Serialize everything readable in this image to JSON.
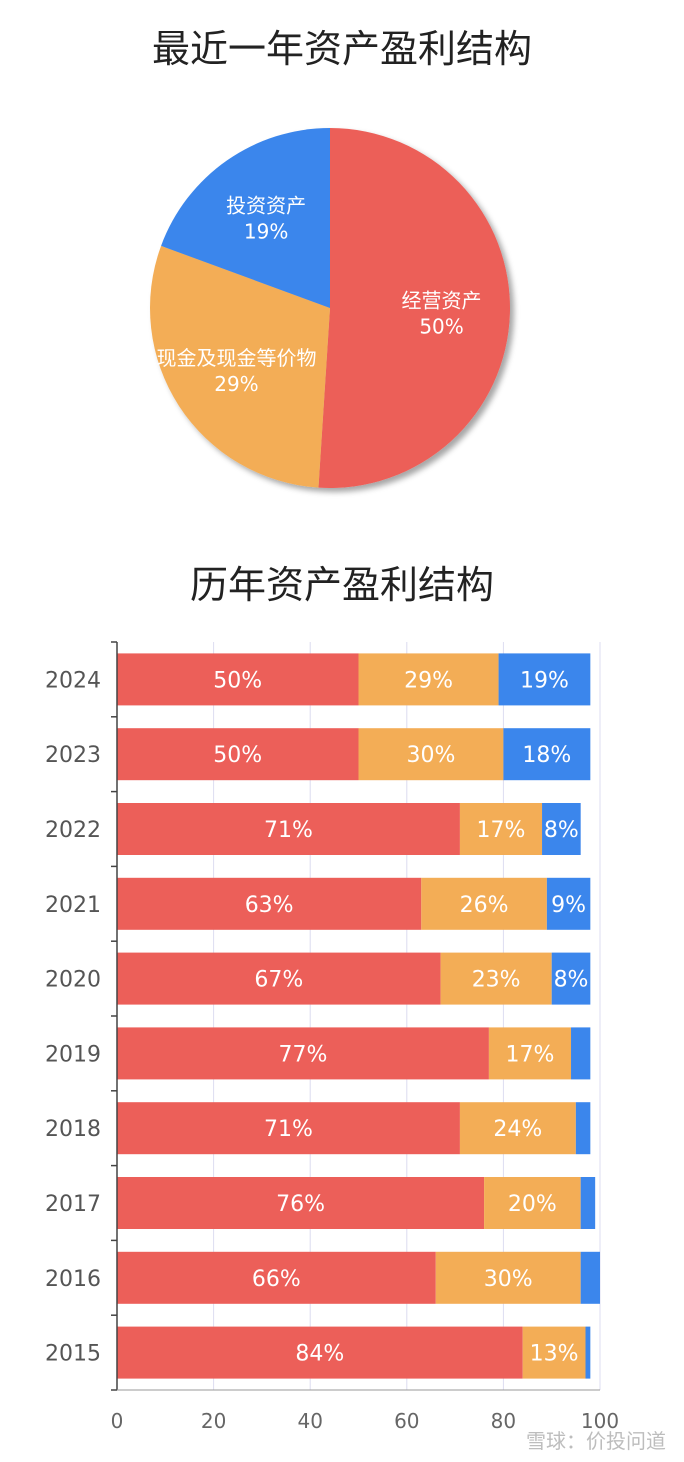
{
  "watermark": "雪球：价投问道",
  "colors": {
    "operating": "#ec5f59",
    "cash": "#f3ad56",
    "invest": "#3b86ec"
  },
  "chart_data": [
    {
      "type": "pie",
      "title": "最近一年资产盈利结构",
      "slices": [
        {
          "label": "经营资产",
          "value": 50,
          "pct_label": "50%",
          "color": "#ec5f59"
        },
        {
          "label": "现金及现金等价物",
          "value": 29,
          "pct_label": "29%",
          "color": "#f3ad56"
        },
        {
          "label": "投资资产",
          "value": 19,
          "pct_label": "19%",
          "color": "#3b86ec"
        }
      ]
    },
    {
      "type": "bar",
      "orientation": "horizontal",
      "stacked": true,
      "title": "历年资产盈利结构",
      "categories": [
        "2024",
        "2023",
        "2022",
        "2021",
        "2020",
        "2019",
        "2018",
        "2017",
        "2016",
        "2015"
      ],
      "xlim": [
        0,
        100
      ],
      "xticks": [
        0,
        20,
        40,
        60,
        80,
        100
      ],
      "grid": true,
      "series": [
        {
          "values": [
            50,
            50,
            71,
            63,
            67,
            77,
            71,
            76,
            66,
            84
          ],
          "color": "#ec5f59"
        },
        {
          "values": [
            29,
            30,
            17,
            26,
            23,
            17,
            24,
            20,
            30,
            13
          ],
          "color": "#f3ad56"
        },
        {
          "values": [
            19,
            18,
            8,
            9,
            8,
            4,
            3,
            3,
            4,
            1
          ],
          "color": "#3b86ec",
          "hide_labels_below": 5
        }
      ]
    }
  ]
}
